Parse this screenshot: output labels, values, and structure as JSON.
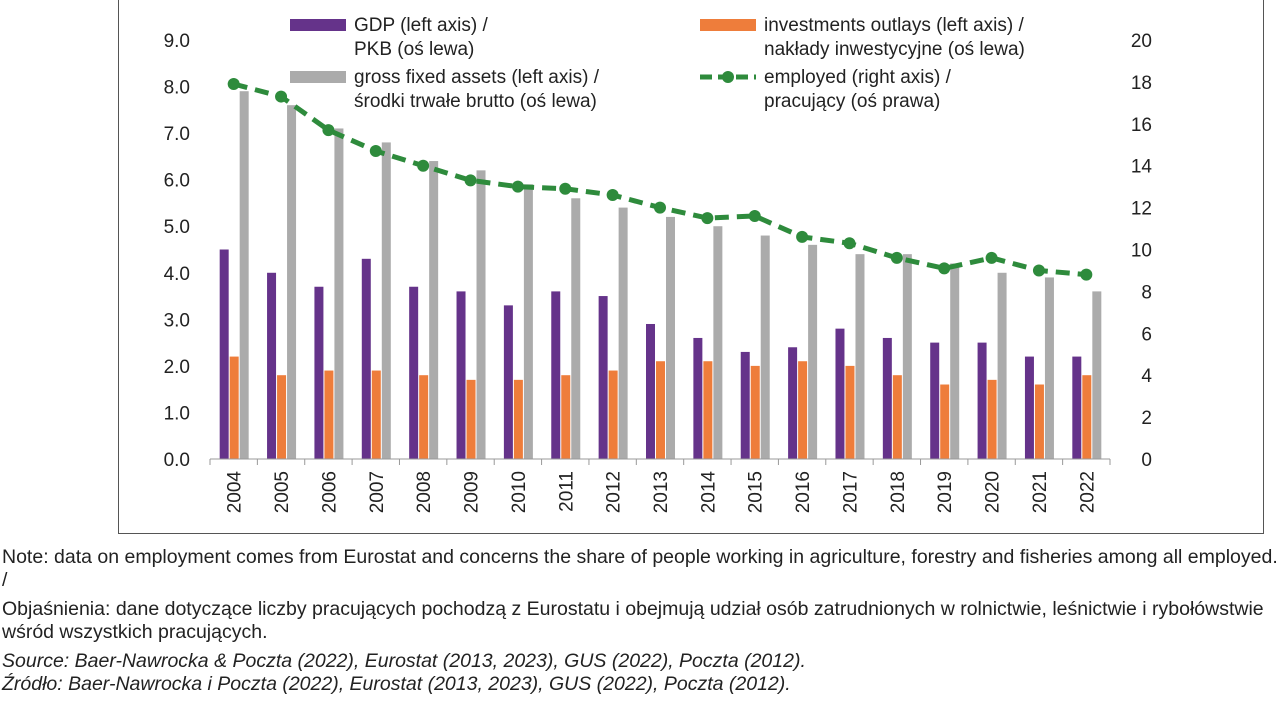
{
  "chart_data": {
    "type": "bar+line",
    "categories": [
      "2004",
      "2005",
      "2006",
      "2007",
      "2008",
      "2009",
      "2010",
      "2011",
      "2012",
      "2013",
      "2014",
      "2015",
      "2016",
      "2017",
      "2018",
      "2019",
      "2020",
      "2021",
      "2022"
    ],
    "series": [
      {
        "name": "GDP (left axis) / PKB (oś lewa)",
        "legend_lines": [
          "GDP (left axis) /",
          "PKB (oś lewa)"
        ],
        "axis": "left",
        "kind": "bar",
        "color": "#65338a",
        "values": [
          4.5,
          4.0,
          3.7,
          4.3,
          3.7,
          3.6,
          3.3,
          3.6,
          3.5,
          2.9,
          2.6,
          2.3,
          2.4,
          2.8,
          2.6,
          2.5,
          2.5,
          2.2,
          2.2
        ]
      },
      {
        "name": "investments outlays (left axis) / nakłady inwestycyjne (oś lewa)",
        "legend_lines": [
          "investments outlays (left axis) /",
          "nakłady inwestycyjne (oś lewa)"
        ],
        "axis": "left",
        "kind": "bar",
        "color": "#ee7d3b",
        "values": [
          2.2,
          1.8,
          1.9,
          1.9,
          1.8,
          1.7,
          1.7,
          1.8,
          1.9,
          2.1,
          2.1,
          2.0,
          2.1,
          2.0,
          1.8,
          1.6,
          1.7,
          1.6,
          1.8
        ]
      },
      {
        "name": "gross fixed assets (left axis) / środki trwałe brutto (oś lewa)",
        "legend_lines": [
          "gross fixed assets (left axis) /",
          "środki trwałe brutto (oś lewa)"
        ],
        "axis": "left",
        "kind": "bar",
        "color": "#ababab",
        "values": [
          7.9,
          7.6,
          7.1,
          6.8,
          6.4,
          6.2,
          5.9,
          5.6,
          5.4,
          5.2,
          5.0,
          4.8,
          4.6,
          4.4,
          4.4,
          4.2,
          4.0,
          3.9,
          3.6
        ]
      },
      {
        "name": "employed (right axis) / pracujący (oś prawa)",
        "legend_lines": [
          "employed (right axis) /",
          "pracujący (oś prawa)"
        ],
        "axis": "right",
        "kind": "line",
        "color": "#2e8b3c",
        "values": [
          17.9,
          17.3,
          15.7,
          14.7,
          14.0,
          13.3,
          13.0,
          12.9,
          12.6,
          12.0,
          11.5,
          11.6,
          10.6,
          10.3,
          9.6,
          9.1,
          9.6,
          9.0,
          8.8
        ]
      }
    ],
    "left_axis": {
      "min": 0,
      "max": 9,
      "ticks": [
        "0.0",
        "1.0",
        "2.0",
        "3.0",
        "4.0",
        "5.0",
        "6.0",
        "7.0",
        "8.0",
        "9.0"
      ]
    },
    "right_axis": {
      "min": 0,
      "max": 20,
      "ticks": [
        "0",
        "2",
        "4",
        "6",
        "8",
        "10",
        "12",
        "14",
        "16",
        "18",
        "20"
      ]
    },
    "grid": false,
    "legend_position": "top"
  },
  "notes": {
    "note_en": "Note: data on employment comes from Eurostat and concerns the share of people working in agriculture, forestry and fisheries among all employed. /",
    "note_pl": "Objaśnienia: dane dotyczące liczby pracujących pochodzą z Eurostatu i obejmują udział osób zatrudnionych w rolnictwie, leśnictwie i rybołówstwie wśród wszystkich pracujących.",
    "source_en": "Source: Baer-Nawrocka & Poczta (2022), Eurostat (2013, 2023), GUS (2022), Poczta (2012).",
    "source_pl": "Źródło: Baer-Nawrocka i Poczta (2022), Eurostat (2013, 2023), GUS (2022), Poczta (2012)."
  }
}
